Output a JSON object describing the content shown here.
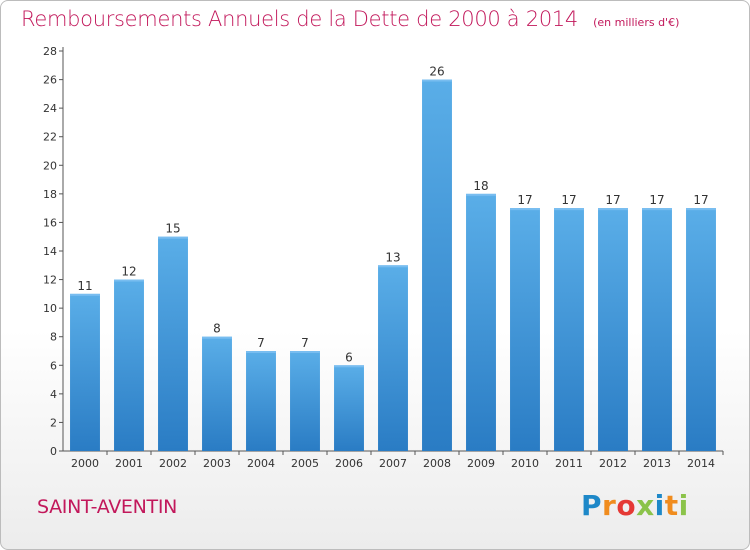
{
  "chart_data": {
    "type": "bar",
    "title": "Remboursements Annuels de la Dette de 2000 à 2014",
    "unit": "(en milliers d'€)",
    "categories": [
      "2000",
      "2001",
      "2002",
      "2003",
      "2004",
      "2005",
      "2006",
      "2007",
      "2008",
      "2009",
      "2010",
      "2011",
      "2012",
      "2013",
      "2014"
    ],
    "values": [
      11,
      12,
      15,
      8,
      7,
      7,
      6,
      13,
      26,
      18,
      17,
      17,
      17,
      17,
      17
    ],
    "ylim": [
      0,
      28
    ],
    "yticks": [
      0,
      2,
      4,
      6,
      8,
      10,
      12,
      14,
      16,
      18,
      20,
      22,
      24,
      26,
      28
    ],
    "grid": false,
    "bar_color": "#4a9fe0",
    "bar_color_dark": "#2a7cc4",
    "bar_color_light": "#5aaee8"
  },
  "footer": {
    "city": "SAINT-AVENTIN",
    "brand_letters": [
      "P",
      "r",
      "o",
      "x",
      "i",
      "t",
      "i"
    ]
  },
  "colors": {
    "title": "#c2185b",
    "axis_text": "#333333",
    "brand": [
      "#1e88c8",
      "#f08c1e",
      "#e53935",
      "#8bc34a",
      "#1e88c8",
      "#f08c1e",
      "#8bc34a"
    ]
  }
}
